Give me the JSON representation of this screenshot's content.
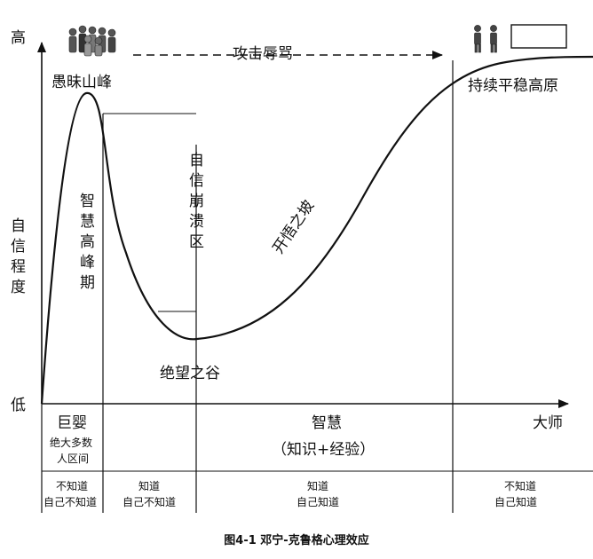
{
  "axes": {
    "y_high": "高",
    "y_low": "低",
    "y_title": [
      "自",
      "信",
      "程",
      "度"
    ]
  },
  "peak_label": "愚昧山峰",
  "insult_label": "攻击辱骂",
  "plateau_label": "持续平稳高原",
  "wisdom_peak": [
    "智",
    "慧",
    "高",
    "峰",
    "期"
  ],
  "collapse_zone": [
    "自",
    "信",
    "崩",
    "溃",
    "区"
  ],
  "valley_label": "绝望之谷",
  "slope_label": "开悟之坡",
  "stages": {
    "baby": "巨婴",
    "baby_note": [
      "绝大多数",
      "人区间"
    ],
    "wisdom": "智慧",
    "wisdom_note": "（知识+经验）",
    "master": "大师"
  },
  "knowledge": [
    [
      "不知道",
      "自己不知道"
    ],
    [
      "知道",
      "自己不知道"
    ],
    [
      "知道",
      "自己知道"
    ],
    [
      "不知道",
      "自己知道"
    ]
  ],
  "caption": "图4-1 邓宁-克鲁格心理效应",
  "icons": [
    "crowd-icon",
    "pair-people-icon"
  ]
}
